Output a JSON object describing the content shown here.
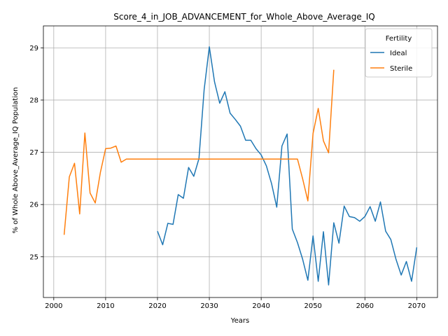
{
  "chart_data": {
    "type": "line",
    "title": "Score_4_in_JOB_ADVANCEMENT_for_Whole_Above_Average_IQ",
    "xlabel": "Years",
    "ylabel": "% of Whole Above_Average_IQ Population",
    "xlim": [
      1998,
      2074
    ],
    "ylim": [
      24.22,
      29.42
    ],
    "xticks": [
      2000,
      2010,
      2020,
      2030,
      2040,
      2050,
      2060,
      2070
    ],
    "yticks": [
      25,
      26,
      27,
      28,
      29
    ],
    "grid": true,
    "legend": {
      "title": "Fertility",
      "placement": "top-right"
    },
    "series": [
      {
        "name": "Ideal",
        "color": "#1f77b4",
        "x": [
          2020,
          2021,
          2022,
          2023,
          2024,
          2025,
          2026,
          2027,
          2028,
          2029,
          2030,
          2031,
          2032,
          2033,
          2034,
          2035,
          2036,
          2037,
          2038,
          2039,
          2040,
          2041,
          2042,
          2043,
          2044,
          2045,
          2046,
          2047,
          2048,
          2049,
          2050,
          2051,
          2052,
          2053,
          2054,
          2055,
          2056,
          2057,
          2058,
          2059,
          2060,
          2061,
          2062,
          2063,
          2064,
          2065,
          2066,
          2067,
          2068,
          2069,
          2070
        ],
        "y": [
          25.49,
          25.23,
          25.64,
          25.62,
          26.19,
          26.12,
          26.71,
          26.54,
          26.88,
          28.2,
          29.02,
          28.35,
          27.94,
          28.16,
          27.75,
          27.63,
          27.5,
          27.23,
          27.23,
          27.07,
          26.95,
          26.74,
          26.4,
          25.95,
          27.12,
          27.35,
          25.53,
          25.27,
          24.95,
          24.55,
          25.4,
          24.53,
          25.48,
          24.46,
          25.65,
          25.26,
          25.97,
          25.77,
          25.75,
          25.68,
          25.77,
          25.96,
          25.68,
          26.05,
          25.49,
          25.33,
          24.95,
          24.65,
          24.91,
          24.53,
          25.18
        ]
      },
      {
        "name": "Sterile",
        "color": "#ff7f0e",
        "x": [
          2002,
          2003,
          2004,
          2005,
          2006,
          2007,
          2008,
          2009,
          2010,
          2011,
          2012,
          2013,
          2014,
          2015,
          2016,
          2017,
          2018,
          2019,
          2020,
          2021,
          2022,
          2023,
          2024,
          2025,
          2026,
          2027,
          2028,
          2029,
          2030,
          2031,
          2032,
          2033,
          2034,
          2035,
          2036,
          2037,
          2038,
          2039,
          2040,
          2041,
          2042,
          2043,
          2044,
          2045,
          2046,
          2047,
          2048,
          2049,
          2050,
          2051,
          2052,
          2053,
          2054
        ],
        "y": [
          25.42,
          26.53,
          26.79,
          25.82,
          27.37,
          26.22,
          26.03,
          26.62,
          27.07,
          27.08,
          27.12,
          26.81,
          26.87,
          26.87,
          26.87,
          26.87,
          26.87,
          26.87,
          26.87,
          26.87,
          26.87,
          26.87,
          26.87,
          26.87,
          26.87,
          26.87,
          26.87,
          26.87,
          26.87,
          26.87,
          26.87,
          26.87,
          26.87,
          26.87,
          26.87,
          26.87,
          26.87,
          26.87,
          26.87,
          26.87,
          26.87,
          26.87,
          26.87,
          26.87,
          26.87,
          26.87,
          26.49,
          26.07,
          27.36,
          27.84,
          27.22,
          26.99,
          28.58
        ]
      }
    ]
  }
}
